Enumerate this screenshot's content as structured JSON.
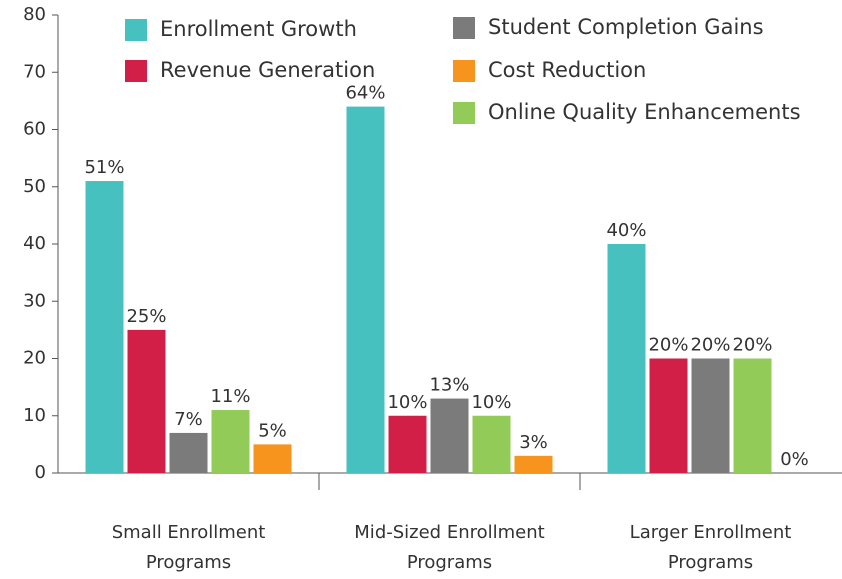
{
  "chart_data": {
    "type": "bar",
    "categories": [
      "Small Enrollment Programs",
      "Mid-Sized Enrollment Programs",
      "Larger Enrollment Programs"
    ],
    "series": [
      {
        "name": "Enrollment Growth",
        "color": "#47c1bf",
        "values": [
          51,
          64,
          40
        ],
        "value_labels": [
          "51%",
          "64%",
          "40%"
        ]
      },
      {
        "name": "Revenue Generation",
        "color": "#d21f47",
        "values": [
          25,
          10,
          20
        ],
        "value_labels": [
          "25%",
          "10%",
          "20%"
        ]
      },
      {
        "name": "Student Completion Gains",
        "color": "#7b7b7b",
        "values": [
          7,
          13,
          20
        ],
        "value_labels": [
          "7%",
          "13%",
          "20%"
        ]
      },
      {
        "name": "Online Quality Enhancements",
        "color": "#92cb57",
        "values": [
          11,
          10,
          20
        ],
        "value_labels": [
          "11%",
          "10%",
          "20%"
        ]
      },
      {
        "name": "Cost Reduction",
        "color": "#f7941d",
        "values": [
          5,
          3,
          0
        ],
        "value_labels": [
          "5%",
          "3%",
          "0%"
        ]
      }
    ],
    "ylim": [
      0,
      80
    ],
    "yticks": [
      0,
      10,
      20,
      30,
      40,
      50,
      60,
      70,
      80
    ],
    "grid": false
  }
}
